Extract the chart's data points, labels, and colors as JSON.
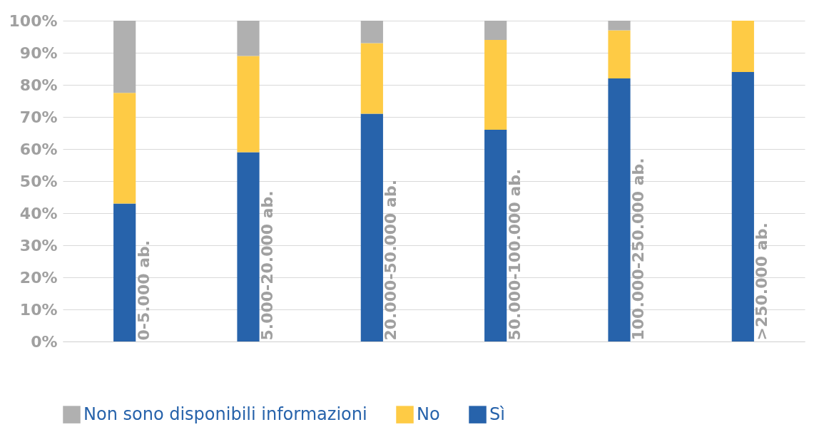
{
  "chart_data": {
    "type": "bar",
    "stacked": true,
    "categories": [
      "0-5.000 ab.",
      "5.000-20.000 ab.",
      "20.000-50.000 ab.",
      "50.000-100.000 ab.",
      "100.000-250.000 ab.",
      ">250.000 ab."
    ],
    "series": [
      {
        "name": "Sì",
        "color": "#2763ab",
        "values": [
          43,
          59,
          71,
          66,
          82,
          84
        ]
      },
      {
        "name": "No",
        "color": "#fecb45",
        "values": [
          34.5,
          30,
          22,
          28,
          15,
          16
        ]
      },
      {
        "name": "Non sono disponibili informazioni",
        "color": "#b0b0b0",
        "values": [
          22.5,
          11,
          7,
          6,
          3,
          0
        ]
      }
    ],
    "ylim": [
      0,
      100
    ],
    "yticks": [
      {
        "value": 0,
        "label": "0%"
      },
      {
        "value": 10,
        "label": "10%"
      },
      {
        "value": 20,
        "label": "20%"
      },
      {
        "value": 30,
        "label": "30%"
      },
      {
        "value": 40,
        "label": "40%"
      },
      {
        "value": 50,
        "label": "50%"
      },
      {
        "value": 60,
        "label": "60%"
      },
      {
        "value": 70,
        "label": "70%"
      },
      {
        "value": 80,
        "label": "80%"
      },
      {
        "value": 90,
        "label": "90%"
      },
      {
        "value": 100,
        "label": "100%"
      }
    ],
    "grid": "y",
    "legend": "bottom"
  }
}
